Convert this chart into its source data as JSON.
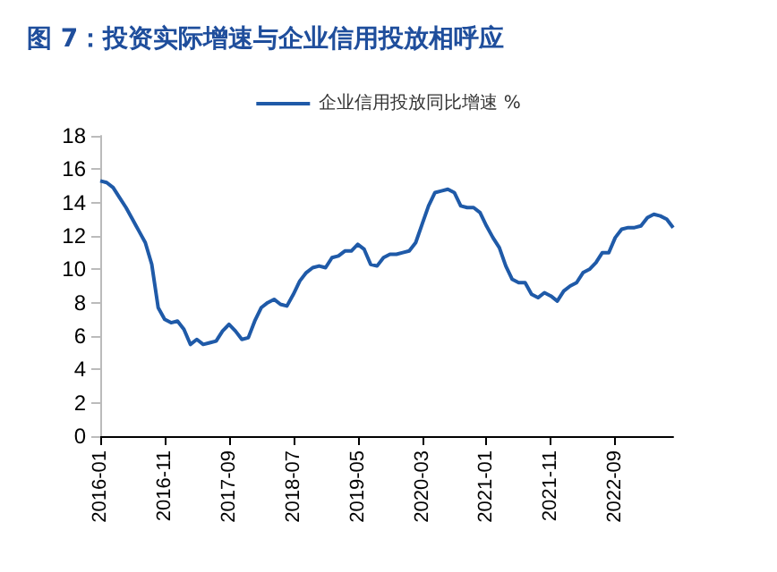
{
  "chart_data": {
    "type": "line",
    "title": "图 7：投资实际增速与企业信用投放相呼应",
    "categories": [
      "2016-01",
      null,
      null,
      null,
      null,
      null,
      null,
      null,
      null,
      null,
      "2016-11",
      null,
      null,
      null,
      null,
      null,
      null,
      null,
      null,
      null,
      "2017-09",
      null,
      null,
      null,
      null,
      null,
      null,
      null,
      null,
      null,
      "2018-07",
      null,
      null,
      null,
      null,
      null,
      null,
      null,
      null,
      null,
      "2019-05",
      null,
      null,
      null,
      null,
      null,
      null,
      null,
      null,
      null,
      "2020-03",
      null,
      null,
      null,
      null,
      null,
      null,
      null,
      null,
      null,
      "2021-01",
      null,
      null,
      null,
      null,
      null,
      null,
      null,
      null,
      null,
      "2021-11",
      null,
      null,
      null,
      null,
      null,
      null,
      null,
      null,
      null,
      "2022-09",
      null,
      null,
      null,
      null,
      null,
      null,
      null,
      null,
      null
    ],
    "series": [
      {
        "name": "企业信用投放同比增速 %",
        "color": "#1f5aa8",
        "values": [
          15.3,
          15.2,
          14.9,
          14.3,
          13.7,
          13.0,
          12.3,
          11.6,
          10.3,
          7.7,
          7.0,
          6.8,
          6.9,
          6.4,
          5.5,
          5.8,
          5.5,
          5.6,
          5.7,
          6.3,
          6.7,
          6.3,
          5.8,
          5.9,
          6.9,
          7.7,
          8.0,
          8.2,
          7.9,
          7.8,
          8.5,
          9.3,
          9.8,
          10.1,
          10.2,
          10.1,
          10.7,
          10.8,
          11.1,
          11.1,
          11.5,
          11.2,
          10.3,
          10.2,
          10.7,
          10.9,
          10.9,
          11.0,
          11.1,
          11.6,
          12.7,
          13.8,
          14.6,
          14.7,
          14.8,
          14.6,
          13.8,
          13.7,
          13.7,
          13.4,
          12.6,
          11.9,
          11.3,
          10.2,
          9.4,
          9.2,
          9.2,
          8.5,
          8.3,
          8.6,
          8.4,
          8.1,
          8.7,
          9.0,
          9.2,
          9.8,
          10.0,
          10.4,
          11.0,
          11.0,
          11.9,
          12.4,
          12.5,
          12.5,
          12.6,
          13.1,
          13.3,
          13.2,
          13.0,
          12.5
        ]
      }
    ],
    "ylim": [
      0,
      18
    ],
    "yticks": [
      0,
      2,
      4,
      6,
      8,
      10,
      12,
      14,
      16,
      18
    ],
    "grid": false,
    "legend": "top",
    "marker": "none",
    "line_style": "solid"
  }
}
